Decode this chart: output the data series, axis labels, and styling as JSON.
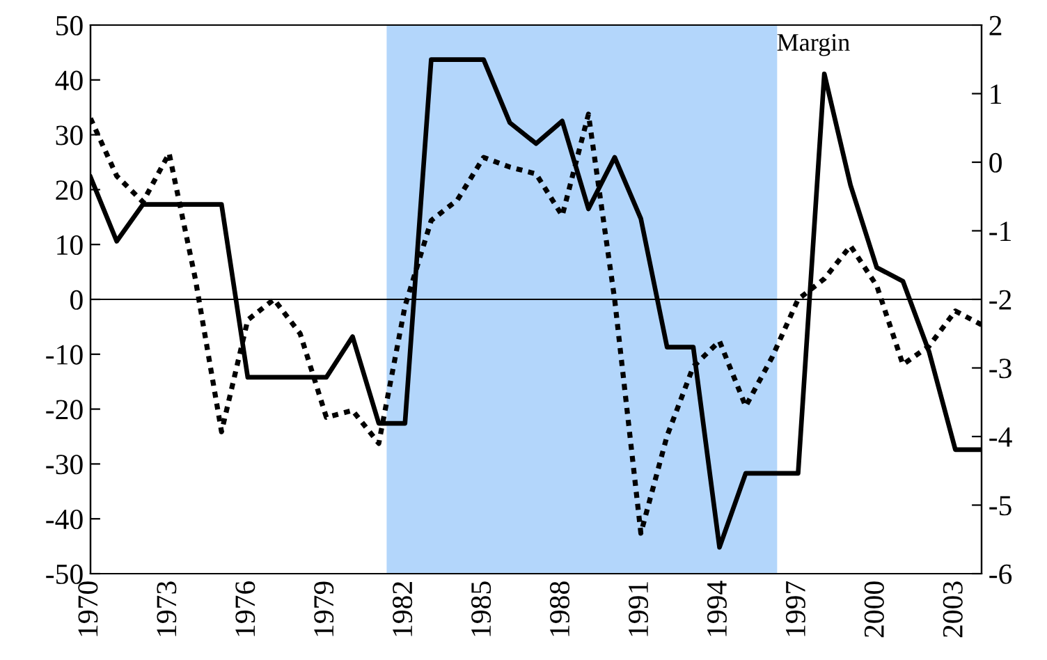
{
  "chart_data": {
    "type": "line",
    "x": [
      1970,
      1971,
      1972,
      1973,
      1974,
      1975,
      1976,
      1977,
      1978,
      1979,
      1980,
      1981,
      1982,
      1983,
      1984,
      1985,
      1986,
      1987,
      1988,
      1989,
      1990,
      1991,
      1992,
      1993,
      1994,
      1995,
      1996,
      1997,
      1998,
      1999,
      2000,
      2001,
      2002,
      2003,
      2004
    ],
    "series": [
      {
        "color": "#000000",
        "line_style": "solid",
        "values": [
          22.3,
          10.6,
          17.3,
          17.3,
          17.3,
          17.3,
          -14.2,
          -14.2,
          -14.2,
          -14.2,
          -6.8,
          -22.6,
          -22.6,
          43.7,
          43.7,
          43.7,
          32.2,
          28.4,
          32.5,
          16.5,
          25.9,
          14.7,
          -8.7,
          -8.7,
          -45.2,
          -31.7,
          -31.7,
          -31.7,
          41.1,
          20.8,
          5.8,
          3.3,
          -9.6,
          -27.4,
          -27.4
        ]
      },
      {
        "color": "#000000",
        "line_style": "dotted",
        "axis": "y2",
        "values": [
          0.64,
          -0.2,
          -0.58,
          0.13,
          -1.7,
          -3.93,
          -2.3,
          -2.0,
          -2.5,
          -3.72,
          -3.62,
          -4.1,
          -2.1,
          -0.85,
          -0.55,
          0.07,
          -0.07,
          -0.17,
          -0.78,
          0.7,
          -2.0,
          -5.41,
          -3.99,
          -2.98,
          -2.61,
          -3.56,
          -2.85,
          -2.0,
          -1.7,
          -1.22,
          -1.8,
          -2.95,
          -2.68,
          -2.17,
          -2.37
        ]
      }
    ],
    "xlim": [
      1970,
      2004
    ],
    "xticks": [
      1970,
      1973,
      1976,
      1979,
      1982,
      1985,
      1988,
      1991,
      1994,
      1997,
      2000,
      2003
    ],
    "ylim": [
      -50,
      50
    ],
    "yticks": [
      -50,
      -40,
      -30,
      -20,
      -10,
      0,
      10,
      20,
      30,
      40,
      50
    ],
    "y2lim": [
      -6,
      2
    ],
    "y2ticks": [
      -6,
      -5,
      -4,
      -3,
      -2,
      -1,
      0,
      1,
      2
    ],
    "bands": [
      {
        "axis": "x",
        "from": 1981.3,
        "to": 1996.2,
        "color": "#b3d6fb"
      }
    ],
    "ref_lines": [
      {
        "axis": "y",
        "value": 0,
        "color": "#000000"
      }
    ],
    "annotations": [
      "Margin"
    ],
    "grid": false,
    "legend": false,
    "marker": "none"
  }
}
